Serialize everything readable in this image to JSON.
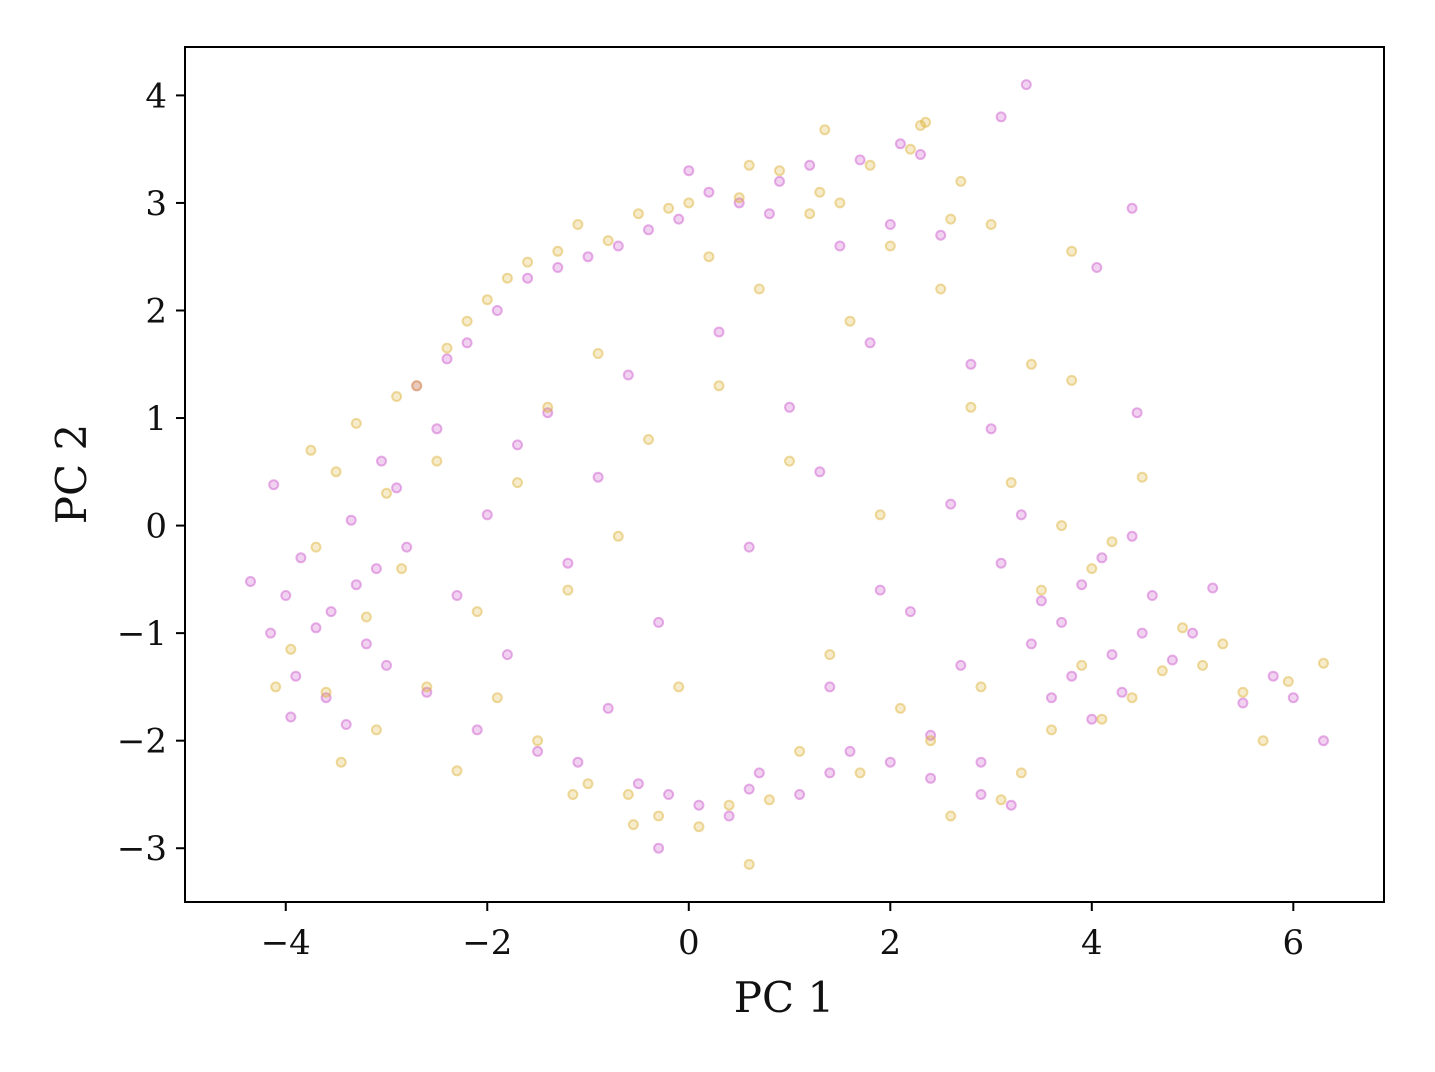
{
  "chart_data": {
    "type": "scatter",
    "title": "",
    "xlabel": "PC 1",
    "ylabel": "PC 2",
    "xlim": [
      -5.0,
      6.9
    ],
    "ylim": [
      -3.5,
      4.45
    ],
    "x_ticks": [
      -4,
      -2,
      0,
      2,
      4,
      6
    ],
    "y_ticks": [
      -3,
      -2,
      -1,
      0,
      1,
      2,
      3,
      4
    ],
    "x_tick_labels": [
      "−4",
      "−2",
      "0",
      "2",
      "4",
      "6"
    ],
    "y_tick_labels": [
      "−3",
      "−2",
      "−1",
      "0",
      "1",
      "2",
      "3",
      "4"
    ],
    "grid": false,
    "legend": "none",
    "marker": "hollow-circle",
    "alpha": 0.45,
    "series": [
      {
        "color": "#c94fc9",
        "x": [
          -4.35,
          -4.15,
          -4.12,
          -4.0,
          -3.95,
          -3.85,
          -3.9,
          -3.7,
          -3.6,
          -3.55,
          -3.4,
          -3.35,
          -3.3,
          -3.2,
          -3.1,
          -3.05,
          -3.0,
          -2.9,
          -2.8,
          -2.7,
          -2.6,
          -2.5,
          -2.4,
          -2.3,
          -2.2,
          -2.1,
          -2.0,
          -1.9,
          -1.8,
          -1.7,
          -1.6,
          -1.5,
          -1.4,
          -1.3,
          -1.2,
          -1.1,
          -1.0,
          -0.9,
          -0.8,
          -0.7,
          -0.6,
          -0.5,
          -0.4,
          -0.3,
          -0.2,
          -0.1,
          0.0,
          0.1,
          0.2,
          0.3,
          0.4,
          0.5,
          0.6,
          0.7,
          0.8,
          0.9,
          1.0,
          1.1,
          1.2,
          1.3,
          1.4,
          1.5,
          1.6,
          1.7,
          1.8,
          1.9,
          2.0,
          2.1,
          2.2,
          2.3,
          2.4,
          2.5,
          2.6,
          2.7,
          2.8,
          2.9,
          3.0,
          3.1,
          3.2,
          3.3,
          3.4,
          3.5,
          3.6,
          3.7,
          3.8,
          3.9,
          4.0,
          4.1,
          4.2,
          4.3,
          4.4,
          4.5,
          4.6,
          4.8,
          5.0,
          5.2,
          5.5,
          5.8,
          6.0,
          6.3,
          3.35,
          3.1,
          4.4,
          4.45,
          4.05,
          -0.3,
          0.6,
          1.4,
          2.0,
          2.4,
          2.9
        ],
        "y": [
          -0.52,
          -1.0,
          0.38,
          -0.65,
          -1.78,
          -0.3,
          -1.4,
          -0.95,
          -1.6,
          -0.8,
          -1.85,
          0.05,
          -0.55,
          -1.1,
          -0.4,
          0.6,
          -1.3,
          0.35,
          -0.2,
          1.3,
          -1.55,
          0.9,
          1.55,
          -0.65,
          1.7,
          -1.9,
          0.1,
          2.0,
          -1.2,
          0.75,
          2.3,
          -2.1,
          1.05,
          2.4,
          -0.35,
          -2.2,
          2.5,
          0.45,
          -1.7,
          2.6,
          1.4,
          -2.4,
          2.75,
          -0.9,
          -2.5,
          2.85,
          3.3,
          -2.6,
          3.1,
          1.8,
          -2.7,
          3.0,
          -0.2,
          -2.3,
          2.9,
          3.2,
          1.1,
          -2.5,
          3.35,
          0.5,
          -1.5,
          2.6,
          -2.1,
          3.4,
          1.7,
          -0.6,
          2.8,
          3.55,
          -0.8,
          3.45,
          -1.95,
          2.7,
          0.2,
          -1.3,
          1.5,
          -2.2,
          0.9,
          -0.35,
          -2.6,
          0.1,
          -1.1,
          -0.7,
          -1.6,
          -0.9,
          -1.4,
          -0.55,
          -1.8,
          -0.3,
          -1.2,
          -1.55,
          -0.1,
          -1.0,
          -0.65,
          -1.25,
          -1.0,
          -0.58,
          -1.65,
          -1.4,
          -1.6,
          -2.0,
          4.1,
          3.8,
          2.95,
          1.05,
          2.4,
          -3.0,
          -2.45,
          -2.3,
          -2.2,
          -2.35,
          -2.5
        ]
      },
      {
        "color": "#dbb030",
        "x": [
          -4.1,
          -3.95,
          -3.75,
          -3.7,
          -3.6,
          -3.5,
          -3.45,
          -3.3,
          -3.2,
          -3.1,
          -3.0,
          -2.9,
          -2.85,
          -2.7,
          -2.6,
          -2.5,
          -2.4,
          -2.3,
          -2.2,
          -2.1,
          -2.0,
          -1.9,
          -1.8,
          -1.7,
          -1.6,
          -1.5,
          -1.4,
          -1.3,
          -1.2,
          -1.1,
          -1.0,
          -0.9,
          -0.8,
          -0.7,
          -0.6,
          -0.5,
          -0.4,
          -0.3,
          -0.2,
          -0.1,
          0.0,
          0.1,
          0.2,
          0.3,
          0.4,
          0.5,
          0.6,
          0.7,
          0.8,
          0.9,
          1.0,
          1.1,
          1.2,
          1.3,
          1.4,
          1.5,
          1.6,
          1.7,
          1.8,
          1.9,
          2.0,
          2.1,
          2.2,
          2.3,
          2.4,
          2.5,
          2.6,
          2.7,
          2.8,
          2.9,
          3.0,
          3.1,
          3.2,
          3.3,
          3.4,
          3.5,
          3.6,
          3.7,
          3.8,
          3.9,
          4.0,
          4.1,
          4.2,
          4.4,
          4.5,
          4.7,
          4.9,
          5.1,
          5.3,
          5.5,
          5.7,
          5.95,
          6.3,
          2.35,
          1.35,
          0.6,
          -0.55,
          -1.15,
          3.8,
          2.6
        ],
        "y": [
          -1.5,
          -1.15,
          0.7,
          -0.2,
          -1.55,
          0.5,
          -2.2,
          0.95,
          -0.85,
          -1.9,
          0.3,
          1.2,
          -0.4,
          1.3,
          -1.5,
          0.6,
          1.65,
          -2.28,
          1.9,
          -0.8,
          2.1,
          -1.6,
          2.3,
          0.4,
          2.45,
          -2.0,
          1.1,
          2.55,
          -0.6,
          2.8,
          -2.4,
          1.6,
          2.65,
          -0.1,
          -2.5,
          2.9,
          0.8,
          -2.7,
          2.95,
          -1.5,
          3.0,
          -2.8,
          2.5,
          1.3,
          -2.6,
          3.05,
          -3.15,
          2.2,
          -2.55,
          3.3,
          0.6,
          -2.1,
          2.9,
          3.1,
          -1.2,
          3.0,
          1.9,
          -2.3,
          3.35,
          0.1,
          2.6,
          -1.7,
          3.5,
          3.72,
          -2.0,
          2.2,
          -2.7,
          3.2,
          1.1,
          -1.5,
          2.8,
          -2.55,
          0.4,
          -2.3,
          1.5,
          -0.6,
          -1.9,
          0.0,
          2.55,
          -1.3,
          -0.4,
          -1.8,
          -0.15,
          -1.6,
          0.45,
          -1.35,
          -0.95,
          -1.3,
          -1.1,
          -1.55,
          -2.0,
          -1.45,
          -1.28,
          3.75,
          3.68,
          3.35,
          -2.78,
          -2.5,
          1.35,
          2.85
        ]
      }
    ]
  }
}
